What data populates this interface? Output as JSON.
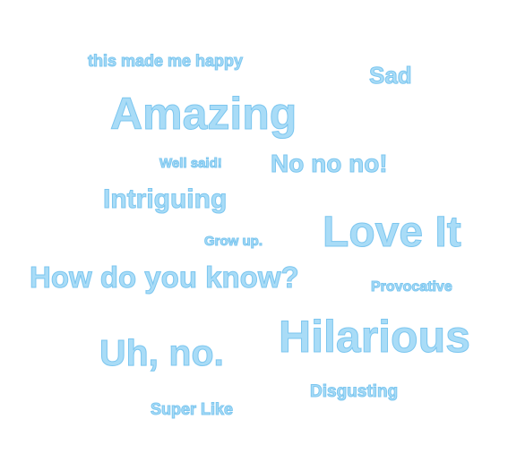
{
  "word_cloud": {
    "accent_color": "#a9dcf7",
    "words": [
      "this made me happy",
      "Sad",
      "Amazing",
      "Well said!",
      "No no no!",
      "Intriguing",
      "Grow up.",
      "Love It",
      "How do you know?",
      "Provocative",
      "Hilarious",
      "Uh, no.",
      "Disgusting",
      "Super Like"
    ]
  }
}
